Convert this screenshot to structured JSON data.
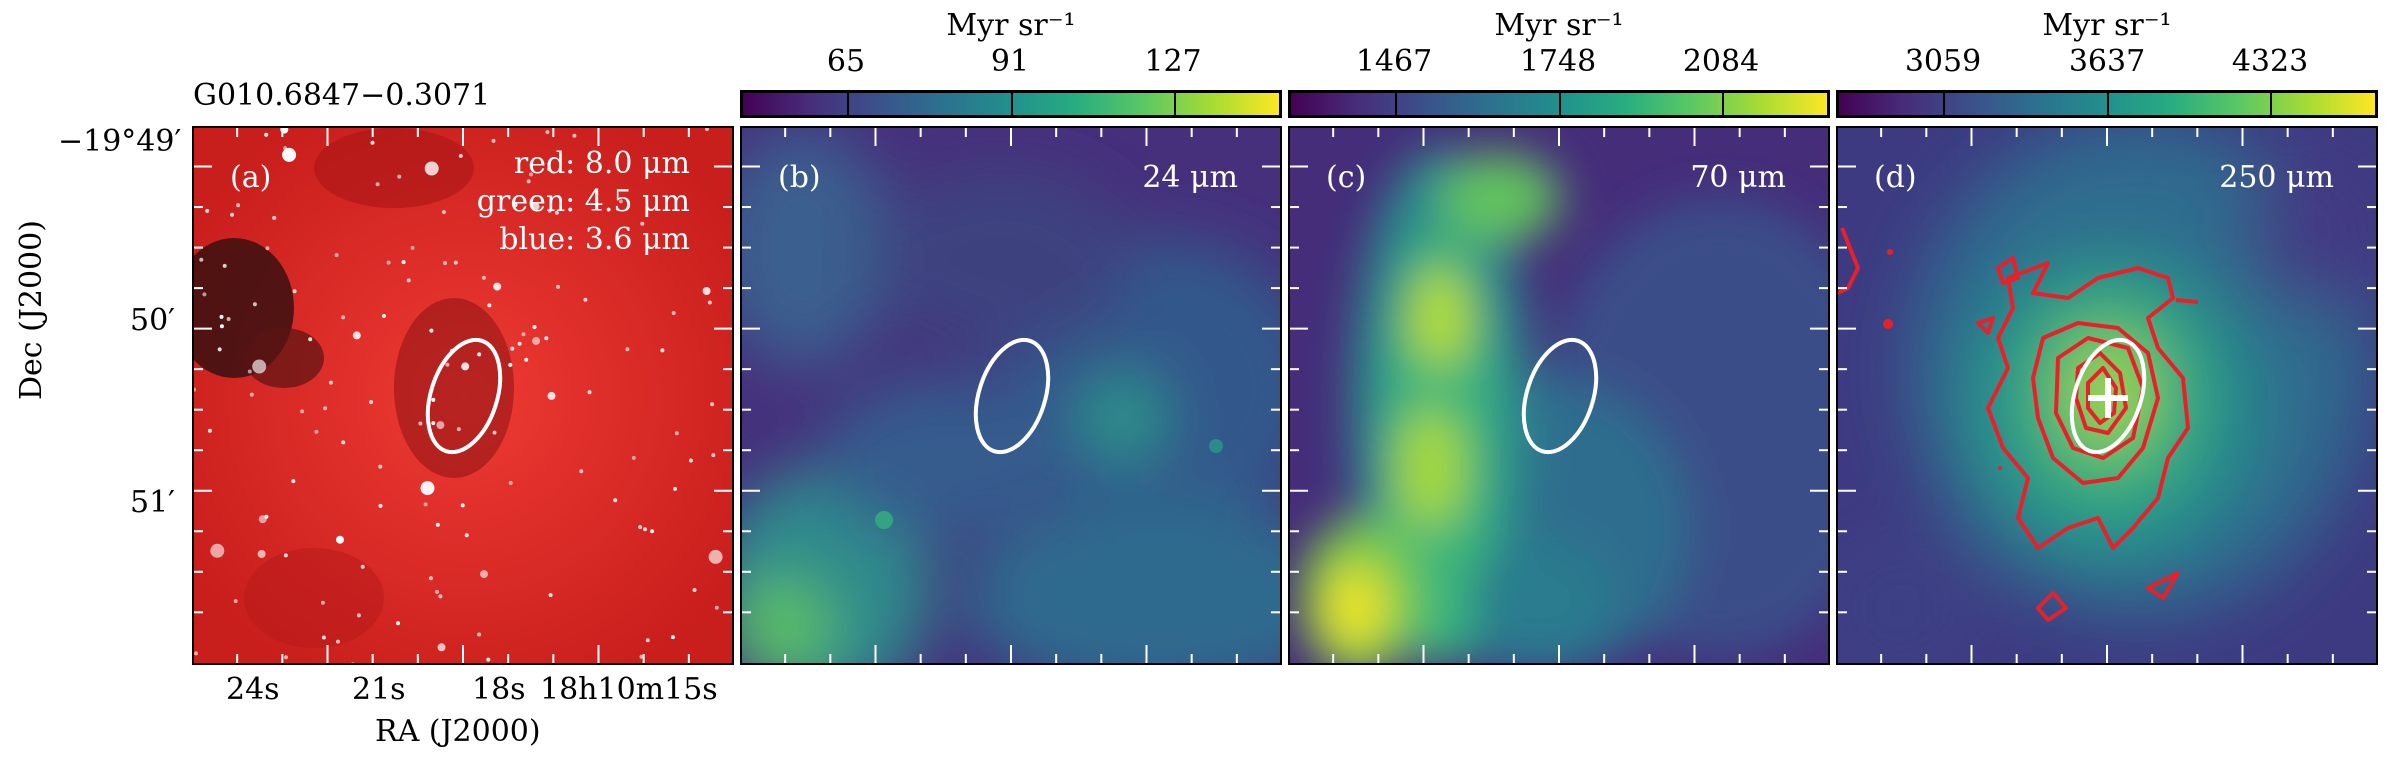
{
  "figure": {
    "source_name": "G010.6847−0.3071",
    "ra_label": "RA (J2000)",
    "dec_label": "Dec (J2000)",
    "ra_ticks": [
      "24s",
      "21s",
      "18s",
      "18h10m15s"
    ],
    "dec_ticks": [
      "−19°49′",
      "50′",
      "51′"
    ]
  },
  "panels": [
    {
      "id": "a",
      "letter": "(a)",
      "lines": [
        "red: 8.0 μm",
        "green: 4.5 μm",
        "blue: 3.6 μm"
      ]
    },
    {
      "id": "b",
      "letter": "(b)",
      "band": "24 μm",
      "colorbar": {
        "label": "Myr sr⁻¹",
        "ticks": [
          "65",
          "91",
          "127"
        ]
      }
    },
    {
      "id": "c",
      "letter": "(c)",
      "band": "70 μm",
      "colorbar": {
        "label": "Myr sr⁻¹",
        "ticks": [
          "1467",
          "1748",
          "2084"
        ]
      }
    },
    {
      "id": "d",
      "letter": "(d)",
      "band": "250 μm",
      "colorbar": {
        "label": "Myr sr⁻¹",
        "ticks": [
          "3059",
          "3637",
          "4323"
        ]
      }
    }
  ],
  "colors": {
    "contour": "#e8202a",
    "ellipse": "#ffffff",
    "cmap_low": "#440154",
    "cmap_high": "#fde725"
  }
}
